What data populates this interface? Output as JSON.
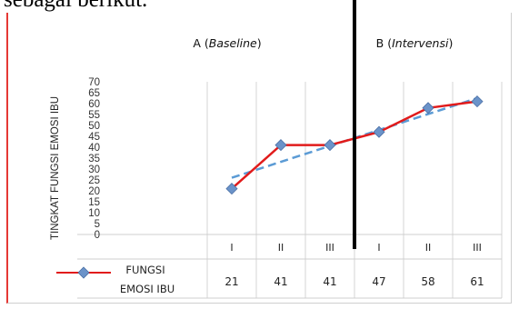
{
  "page": {
    "top_text": "sebagai berikut."
  },
  "chart_data": {
    "type": "line",
    "ylabel": "TINGKAT FUNGSI EMOSI IBU",
    "ylim": [
      0,
      70
    ],
    "yticks": [
      0,
      5,
      10,
      15,
      20,
      25,
      30,
      35,
      40,
      45,
      50,
      55,
      60,
      65,
      70
    ],
    "categories": [
      "I",
      "II",
      "III",
      "I",
      "II",
      "III"
    ],
    "phases": [
      {
        "label_prefix": "A (",
        "label_italic": "Baseline",
        "label_suffix": ")",
        "span": [
          0,
          2
        ]
      },
      {
        "label_prefix": "B (",
        "label_italic": "Intervensi",
        "label_suffix": ")",
        "span": [
          3,
          5
        ]
      }
    ],
    "series": [
      {
        "name": "FUNGSI EMOSI IBU",
        "values": [
          21,
          41,
          41,
          47,
          58,
          61
        ],
        "color": "#e11b1b",
        "marker_color": "#6b93c9"
      }
    ],
    "trendline": {
      "values": [
        26,
        33.4,
        40.6,
        47.9,
        55.2,
        62.5
      ],
      "color": "#5b9bd5",
      "style": "dashed"
    },
    "phase_divider": {
      "after_category_index": 2,
      "color": "#000000"
    },
    "legend": {
      "placement": "bottom-left",
      "line1": "FUNGSI",
      "line2": "EMOSI IBU"
    },
    "grid": true
  }
}
